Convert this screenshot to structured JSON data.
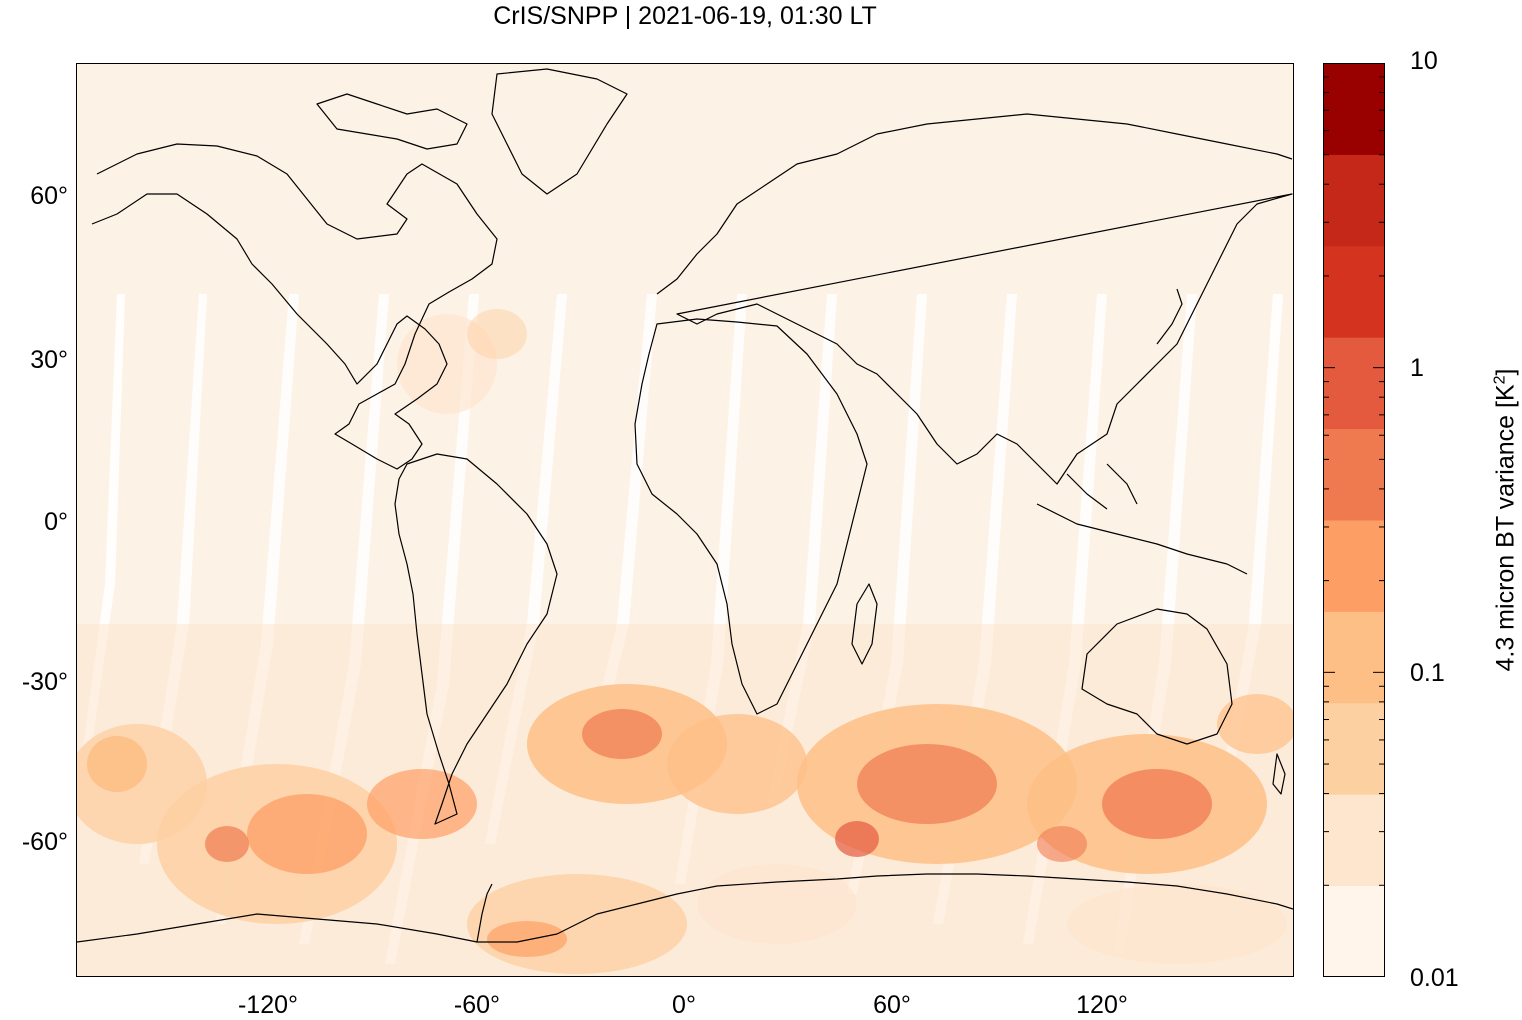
{
  "title": "CrIS/SNPP | 2021-06-19, 01:30 LT",
  "map": {
    "projection": "equirectangular",
    "lon_range": [
      -175,
      175
    ],
    "lat_range": [
      -83,
      85
    ],
    "lat_ticks": [
      {
        "value": 60,
        "label": "60°"
      },
      {
        "value": 30,
        "label": "30°"
      },
      {
        "value": 0,
        "label": "0°"
      },
      {
        "value": -30,
        "label": "-30°"
      },
      {
        "value": -60,
        "label": "-60°"
      }
    ],
    "lon_ticks": [
      {
        "value": -120,
        "label": "-120°"
      },
      {
        "value": -60,
        "label": "-60°"
      },
      {
        "value": 0,
        "label": "0°"
      },
      {
        "value": 60,
        "label": "60°"
      },
      {
        "value": 120,
        "label": "120°"
      }
    ],
    "background_color": "#fdf2e6",
    "coastline_color": "#000000"
  },
  "colorbar": {
    "title": "4.3 micron BT variance [K²]",
    "title_main": "4.3 micron BT variance [K",
    "title_sup": "2",
    "title_end": "]",
    "scale": "log",
    "range": [
      0.01,
      10
    ],
    "tick_labels": [
      {
        "value": 10,
        "label": "10"
      },
      {
        "value": 1,
        "label": "1"
      },
      {
        "value": 0.1,
        "label": "0.1"
      },
      {
        "value": 0.01,
        "label": "0.01"
      }
    ],
    "colors": [
      "#fff5eb",
      "#fee6ce",
      "#fdd0a2",
      "#fdbf86",
      "#fd9f65",
      "#f07a50",
      "#e45a3e",
      "#d3331f",
      "#c52719",
      "#990000"
    ]
  }
}
